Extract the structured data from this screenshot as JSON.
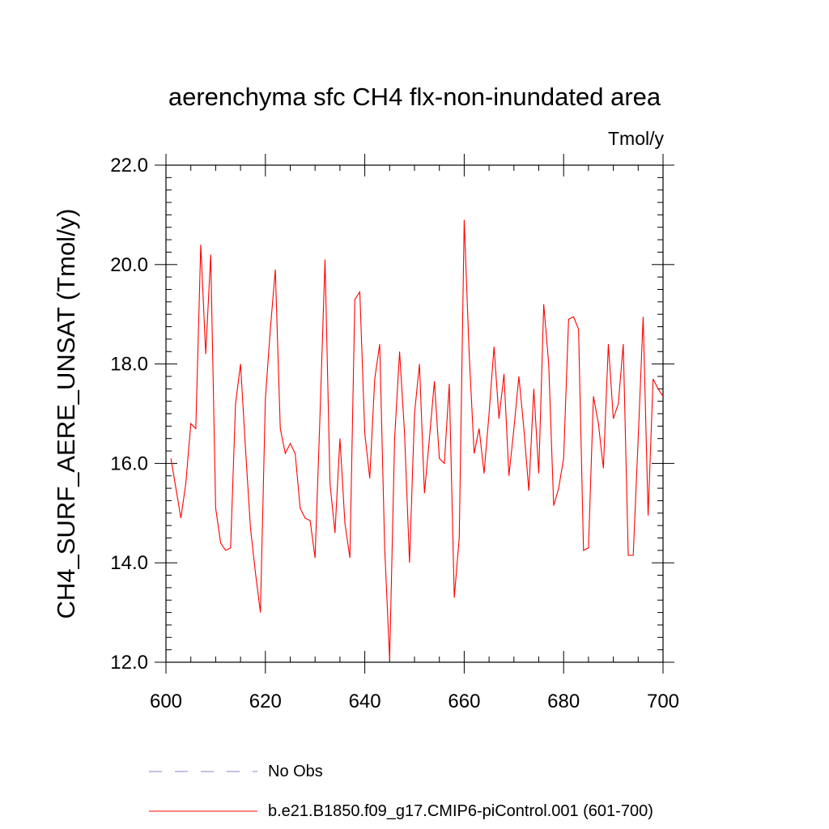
{
  "chart_data": {
    "type": "line",
    "title": "aerenchyma sfc CH4 flx-non-inundated area",
    "units": "Tmol/y",
    "ylabel": "CH4_SURF_AERE_UNSAT  (Tmol/y)",
    "xlabel": "",
    "xlim": [
      600,
      700
    ],
    "ylim": [
      12.0,
      22.0
    ],
    "xticks": [
      600,
      620,
      640,
      660,
      680,
      700
    ],
    "yticks": [
      12.0,
      14.0,
      16.0,
      18.0,
      20.0,
      22.0
    ],
    "ytick_labels": [
      "12.0",
      "14.0",
      "16.0",
      "18.0",
      "20.0",
      "22.0"
    ],
    "series": [
      {
        "name": "b.e21.B1850.f09_g17.CMIP6-piControl.001 (601-700)",
        "color": "#ff0000",
        "x_start": 601,
        "values": [
          16.1,
          15.5,
          14.9,
          15.6,
          16.8,
          16.7,
          20.4,
          18.2,
          20.2,
          15.1,
          14.4,
          14.25,
          14.3,
          17.2,
          18.0,
          16.3,
          14.7,
          13.8,
          13.0,
          17.3,
          18.7,
          19.9,
          16.7,
          16.2,
          16.4,
          16.2,
          15.1,
          14.9,
          14.85,
          14.1,
          17.0,
          20.1,
          15.6,
          14.6,
          16.5,
          14.8,
          14.1,
          19.3,
          19.45,
          16.6,
          15.7,
          17.7,
          18.4,
          14.3,
          12.05,
          16.5,
          18.25,
          16.6,
          14.0,
          17.0,
          18.0,
          15.4,
          16.5,
          17.65,
          16.1,
          16.0,
          17.6,
          13.3,
          14.5,
          20.9,
          18.2,
          16.2,
          16.7,
          15.8,
          17.0,
          18.35,
          16.9,
          17.8,
          15.75,
          16.7,
          17.75,
          16.7,
          15.45,
          17.5,
          15.8,
          19.2,
          18.0,
          15.15,
          15.5,
          16.1,
          18.9,
          18.95,
          18.7,
          14.25,
          14.3,
          17.35,
          16.8,
          15.9,
          18.4,
          16.9,
          17.2,
          18.4,
          14.15,
          14.15,
          16.5,
          18.95,
          14.95,
          17.7,
          17.5,
          17.35
        ]
      }
    ],
    "legend": [
      {
        "label": "No Obs",
        "style": "dashed",
        "color": "#9c9cd8"
      },
      {
        "label": "b.e21.B1850.f09_g17.CMIP6-piControl.001 (601-700)",
        "style": "solid",
        "color": "#ff0000"
      }
    ]
  }
}
